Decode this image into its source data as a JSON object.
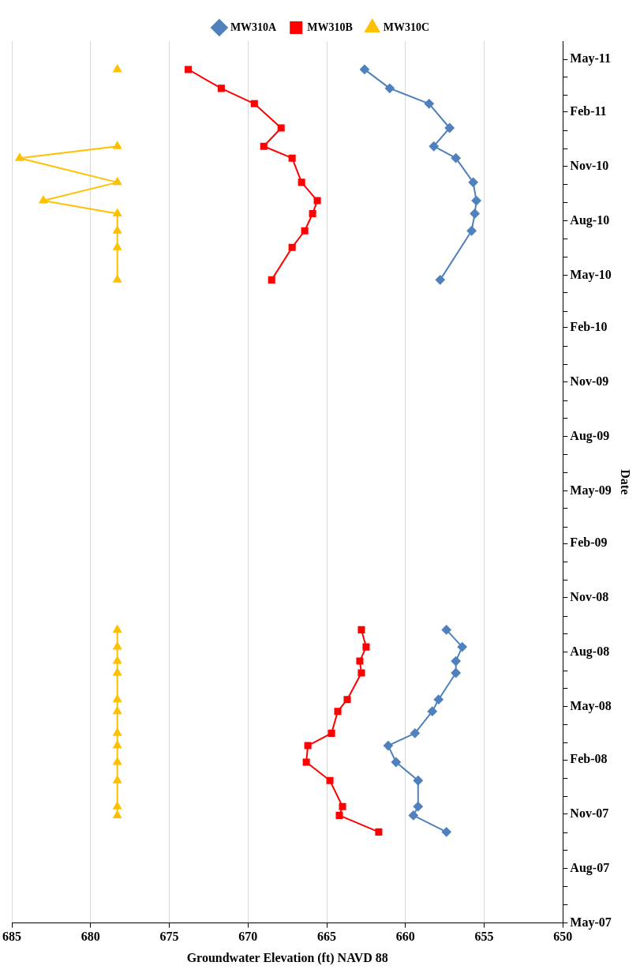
{
  "chart_data": {
    "type": "line",
    "orientation": "horizontal",
    "xlabel": "Groundwater Elevation (ft) NAVD 88",
    "ylabel": "Date",
    "xlim": [
      685,
      650
    ],
    "xticks": [
      685,
      680,
      675,
      670,
      665,
      660,
      655,
      650
    ],
    "ylim": [
      "2007-05",
      "2011-06"
    ],
    "yticks": [
      {
        "value": "2007-05",
        "label": "May-07"
      },
      {
        "value": "2007-06",
        "label": null
      },
      {
        "value": "2007-07",
        "label": null
      },
      {
        "value": "2007-08",
        "label": "Aug-07"
      },
      {
        "value": "2007-09",
        "label": null
      },
      {
        "value": "2007-10",
        "label": null
      },
      {
        "value": "2007-11",
        "label": "Nov-07"
      },
      {
        "value": "2007-12",
        "label": null
      },
      {
        "value": "2008-01",
        "label": null
      },
      {
        "value": "2008-02",
        "label": "Feb-08"
      },
      {
        "value": "2008-03",
        "label": null
      },
      {
        "value": "2008-04",
        "label": null
      },
      {
        "value": "2008-05",
        "label": "May-08"
      },
      {
        "value": "2008-06",
        "label": null
      },
      {
        "value": "2008-07",
        "label": null
      },
      {
        "value": "2008-08",
        "label": "Aug-08"
      },
      {
        "value": "2008-09",
        "label": null
      },
      {
        "value": "2008-10",
        "label": null
      },
      {
        "value": "2008-11",
        "label": "Nov-08"
      },
      {
        "value": "2008-12",
        "label": null
      },
      {
        "value": "2009-01",
        "label": null
      },
      {
        "value": "2009-02",
        "label": "Feb-09"
      },
      {
        "value": "2009-03",
        "label": null
      },
      {
        "value": "2009-04",
        "label": null
      },
      {
        "value": "2009-05",
        "label": "May-09"
      },
      {
        "value": "2009-06",
        "label": null
      },
      {
        "value": "2009-07",
        "label": null
      },
      {
        "value": "2009-08",
        "label": "Aug-09"
      },
      {
        "value": "2009-09",
        "label": null
      },
      {
        "value": "2009-10",
        "label": null
      },
      {
        "value": "2009-11",
        "label": "Nov-09"
      },
      {
        "value": "2009-12",
        "label": null
      },
      {
        "value": "2010-01",
        "label": null
      },
      {
        "value": "2010-02",
        "label": "Feb-10"
      },
      {
        "value": "2010-03",
        "label": null
      },
      {
        "value": "2010-04",
        "label": null
      },
      {
        "value": "2010-05",
        "label": "May-10"
      },
      {
        "value": "2010-06",
        "label": null
      },
      {
        "value": "2010-07",
        "label": null
      },
      {
        "value": "2010-08",
        "label": "Aug-10"
      },
      {
        "value": "2010-09",
        "label": null
      },
      {
        "value": "2010-10",
        "label": null
      },
      {
        "value": "2010-11",
        "label": "Nov-10"
      },
      {
        "value": "2010-12",
        "label": null
      },
      {
        "value": "2011-01",
        "label": null
      },
      {
        "value": "2011-02",
        "label": "Feb-11"
      },
      {
        "value": "2011-03",
        "label": null
      },
      {
        "value": "2011-04",
        "label": null
      },
      {
        "value": "2011-05",
        "label": "May-11"
      }
    ],
    "grid": "x",
    "legend": "top",
    "line_style": "solid",
    "series": [
      {
        "name": "MW310A",
        "color": "#4f81bd",
        "marker": "diamond",
        "x": [
          "2007-10-02",
          "2007-10-30",
          "2007-11-14",
          "2007-12-28",
          "2008-01-28",
          "2008-02-25",
          "2008-03-17",
          "2008-04-23",
          "2008-05-13",
          "2008-06-27",
          "2008-07-17",
          "2008-08-10",
          "2008-09-08",
          "2009-06-01",
          "2010-04-23",
          "2010-07-15",
          "2010-08-13",
          "2010-09-04",
          "2010-10-05",
          "2010-11-15",
          "2010-12-05",
          "2011-01-05",
          "2011-02-15",
          "2011-03-13",
          "2011-04-14"
        ],
        "values": [
          657.4,
          659.5,
          659.2,
          659.2,
          660.6,
          661.1,
          659.4,
          658.3,
          657.9,
          656.8,
          656.8,
          656.4,
          657.4,
          null,
          657.8,
          655.8,
          655.6,
          655.5,
          655.7,
          656.8,
          658.2,
          657.2,
          658.5,
          661.0,
          662.6
        ]
      },
      {
        "name": "MW310B",
        "color": "#ff0000",
        "marker": "square",
        "x": [
          "2007-10-02",
          "2007-10-30",
          "2007-11-14",
          "2007-12-28",
          "2008-01-28",
          "2008-02-25",
          "2008-03-17",
          "2008-04-23",
          "2008-05-13",
          "2008-06-27",
          "2008-07-17",
          "2008-08-10",
          "2008-09-08",
          "2009-06-01",
          "2010-04-23",
          "2010-06-17",
          "2010-07-15",
          "2010-08-13",
          "2010-09-04",
          "2010-10-05",
          "2010-11-15",
          "2010-12-05",
          "2011-01-05",
          "2011-02-15",
          "2011-03-13",
          "2011-04-14"
        ],
        "values": [
          661.7,
          664.2,
          664.0,
          664.8,
          666.3,
          666.2,
          664.7,
          664.3,
          663.7,
          662.8,
          662.9,
          662.5,
          662.8,
          null,
          668.5,
          667.2,
          666.4,
          665.9,
          665.6,
          666.6,
          667.2,
          669.0,
          667.9,
          669.6,
          671.7,
          673.8
        ]
      },
      {
        "name": "MW310C",
        "color": "#ffc000",
        "marker": "triangle",
        "x": [
          "2007-10-30",
          "2007-11-14",
          "2007-12-28",
          "2008-01-28",
          "2008-02-25",
          "2008-03-17",
          "2008-04-23",
          "2008-05-13",
          "2008-06-27",
          "2008-07-17",
          "2008-08-10",
          "2008-09-08",
          "2009-06-01",
          "2010-04-23",
          "2010-06-17",
          "2010-07-15",
          "2010-08-13",
          "2010-09-04",
          "2010-10-05",
          "2010-11-15",
          "2010-12-05",
          "2011-01-05",
          "2011-04-14"
        ],
        "values": [
          678.3,
          678.3,
          678.3,
          678.3,
          678.3,
          678.3,
          678.3,
          678.3,
          678.3,
          678.3,
          678.3,
          678.3,
          null,
          678.3,
          678.3,
          678.3,
          678.3,
          683.0,
          678.3,
          684.5,
          678.3,
          null,
          678.3
        ]
      }
    ]
  }
}
